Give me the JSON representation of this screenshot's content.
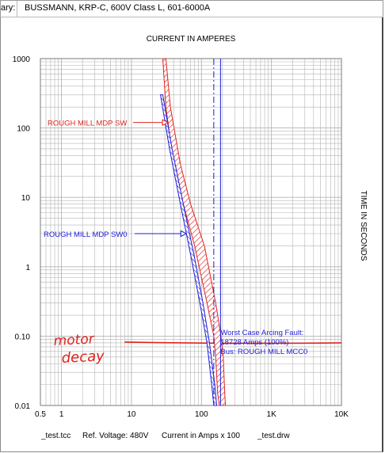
{
  "window": {
    "title_prefix": "ary:",
    "title": "BUSSMANN, KRP-C, 600V Class L, 601-6000A"
  },
  "footer": {
    "file_left": "_test.tcc",
    "ref_voltage": "Ref. Voltage: 480V",
    "current_units": "Current in Amps x 100",
    "file_right": "_test.drw"
  },
  "handwriting": "motor decay",
  "colors": {
    "red": "#e0241e",
    "blue": "#1c1cd8",
    "grid": "#b3b3b3",
    "annotation_text": "#1c1cd8"
  },
  "chart_data": {
    "type": "line",
    "title": "CURRENT IN AMPERES",
    "xlabel": "Current in Amps x 100",
    "ylabel": "TIME IN SECONDS",
    "x_scale": "log",
    "y_scale": "log",
    "xlim": [
      0.5,
      10000
    ],
    "ylim": [
      0.01,
      1000
    ],
    "grid": true,
    "x_ticks": [
      "0.5",
      "1",
      "10",
      "100",
      "1K",
      "10K"
    ],
    "y_ticks": [
      "0.01",
      "0.10",
      "1",
      "10",
      "100",
      "1000"
    ],
    "series": [
      {
        "name": "ROUGH MILL MDP SW",
        "color": "#e0241e",
        "style": "hatched band",
        "left_edge": [
          [
            28,
            1000
          ],
          [
            31,
            200
          ],
          [
            40,
            30
          ],
          [
            55,
            8
          ],
          [
            80,
            2
          ],
          [
            120,
            0.3
          ],
          [
            150,
            0.1
          ],
          [
            160,
            0.05
          ],
          [
            170,
            0.015
          ],
          [
            180,
            0.01
          ]
        ],
        "right_edge": [
          [
            31,
            1000
          ],
          [
            36,
            200
          ],
          [
            50,
            30
          ],
          [
            70,
            8
          ],
          [
            110,
            2
          ],
          [
            160,
            0.3
          ],
          [
            190,
            0.1
          ],
          [
            205,
            0.05
          ],
          [
            215,
            0.015
          ],
          [
            220,
            0.01
          ]
        ]
      },
      {
        "name": "ROUGH MILL MDP SW0",
        "color": "#1c1cd8",
        "style": "hatched band",
        "left_edge": [
          [
            26,
            300
          ],
          [
            35,
            50
          ],
          [
            50,
            8
          ],
          [
            70,
            1.5
          ],
          [
            95,
            0.3
          ],
          [
            120,
            0.08
          ],
          [
            140,
            0.02
          ],
          [
            150,
            0.01
          ]
        ],
        "right_edge": [
          [
            28,
            300
          ],
          [
            38,
            50
          ],
          [
            55,
            8
          ],
          [
            78,
            1.5
          ],
          [
            105,
            0.3
          ],
          [
            130,
            0.08
          ],
          [
            155,
            0.02
          ],
          [
            165,
            0.01
          ]
        ]
      }
    ],
    "vertical_lines": [
      {
        "x": 150,
        "color": "#1c1cd8",
        "style": "dashdot"
      },
      {
        "x": 187.28,
        "color": "#1c1cd8",
        "style": "solid"
      }
    ],
    "labels": [
      {
        "text": "ROUGH MILL MDP SW",
        "color": "#e0241e",
        "series": "ROUGH MILL MDP SW",
        "x": 36,
        "y": 120
      },
      {
        "text": "ROUGH MILL MDP SW0",
        "color": "#1c1cd8",
        "series": "ROUGH MILL MDP SW0",
        "x": 58,
        "y": 3
      }
    ],
    "annotation": {
      "lines": [
        "Worst Case Arcing Fault:",
        "18728 Amps (100%)",
        "Bus: ROUGH MILL MCC0"
      ],
      "color": "#1c1cd8",
      "x": 187.28,
      "y": 0.08
    },
    "hand_drawn_line": {
      "y": 0.08,
      "color": "#e0241e",
      "x_range": [
        8,
        10000
      ]
    }
  }
}
